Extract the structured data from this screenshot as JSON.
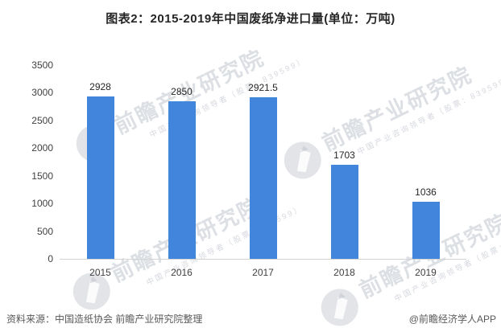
{
  "title": "图表2：2015-2019年中国废纸净进口量(单位：万吨)",
  "chart_data": {
    "type": "bar",
    "categories": [
      "2015",
      "2016",
      "2017",
      "2018",
      "2019"
    ],
    "values": [
      2928,
      2850,
      2921.5,
      1703,
      1036
    ],
    "value_labels": [
      "2928",
      "2850",
      "2921.5",
      "1703",
      "1036"
    ],
    "title": "图表2：2015-2019年中国废纸净进口量(单位：万吨)",
    "xlabel": "",
    "ylabel": "",
    "ylim": [
      0,
      3500
    ],
    "y_ticks": [
      0,
      500,
      1000,
      1500,
      2000,
      2500,
      3000,
      3500
    ],
    "grid": false,
    "legend": false,
    "bar_color": "#4285DC",
    "axis_line_color": "#d3d3d3"
  },
  "watermark": {
    "brand_text": "前瞻产业研究院",
    "sub_text": "中国产业咨询领导者（股票：839599）",
    "logo": "qianzhan-circle-logo"
  },
  "footer": {
    "source": "资料来源：中国造纸协会 前瞻产业研究院整理",
    "credit": "@前瞻经济学人APP"
  }
}
